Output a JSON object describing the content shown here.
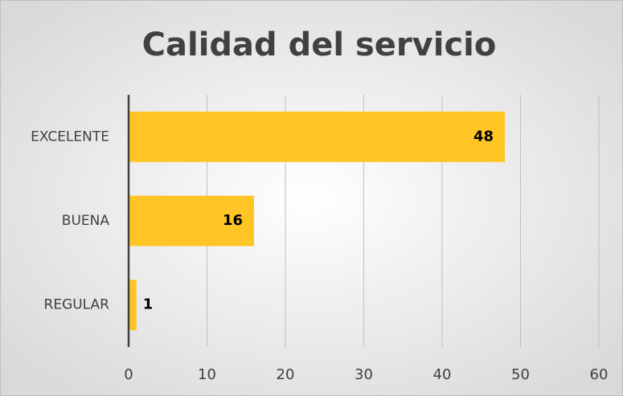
{
  "chart_data": {
    "type": "hbar",
    "title": "Calidad del servicio",
    "categories": [
      "EXCELENTE",
      "BUENA",
      "REGULAR"
    ],
    "values": [
      48,
      16,
      1
    ],
    "color": "#ffc525",
    "xlim": [
      0,
      60
    ],
    "xticks": [
      0,
      10,
      20,
      30,
      40,
      50,
      60
    ],
    "grid": true
  }
}
